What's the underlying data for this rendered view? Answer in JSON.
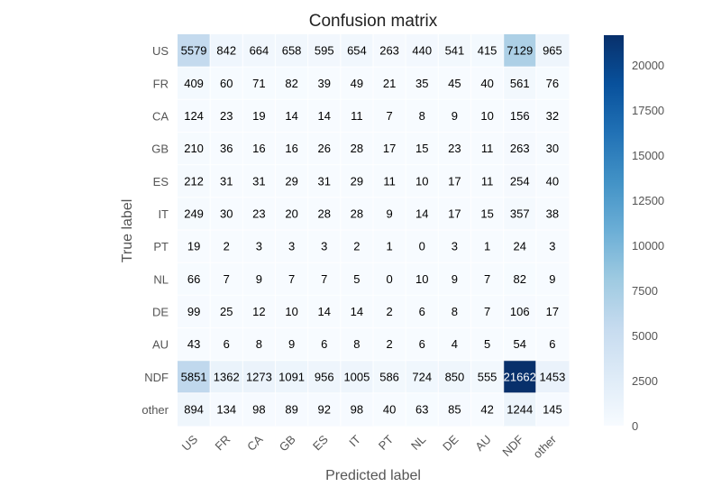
{
  "chart_data": {
    "type": "heatmap",
    "title": "Confusion matrix",
    "xlabel": "Predicted label",
    "ylabel": "True label",
    "x_categories": [
      "US",
      "FR",
      "CA",
      "GB",
      "ES",
      "IT",
      "PT",
      "NL",
      "DE",
      "AU",
      "NDF",
      "other"
    ],
    "y_categories": [
      "US",
      "FR",
      "CA",
      "GB",
      "ES",
      "IT",
      "PT",
      "NL",
      "DE",
      "AU",
      "NDF",
      "other"
    ],
    "values": [
      [
        5579,
        842,
        664,
        658,
        595,
        654,
        263,
        440,
        541,
        415,
        7129,
        965
      ],
      [
        409,
        60,
        71,
        82,
        39,
        49,
        21,
        35,
        45,
        40,
        561,
        76
      ],
      [
        124,
        23,
        19,
        14,
        14,
        11,
        7,
        8,
        9,
        10,
        156,
        32
      ],
      [
        210,
        36,
        16,
        16,
        26,
        28,
        17,
        15,
        23,
        11,
        263,
        30
      ],
      [
        212,
        31,
        31,
        29,
        31,
        29,
        11,
        10,
        17,
        11,
        254,
        40
      ],
      [
        249,
        30,
        23,
        20,
        28,
        28,
        9,
        14,
        17,
        15,
        357,
        38
      ],
      [
        19,
        2,
        3,
        3,
        3,
        2,
        1,
        0,
        3,
        1,
        24,
        3
      ],
      [
        66,
        7,
        9,
        7,
        7,
        5,
        0,
        10,
        9,
        7,
        82,
        9
      ],
      [
        99,
        25,
        12,
        10,
        14,
        14,
        2,
        6,
        8,
        7,
        106,
        17
      ],
      [
        43,
        6,
        8,
        9,
        6,
        8,
        2,
        6,
        4,
        5,
        54,
        6
      ],
      [
        5851,
        1362,
        1273,
        1091,
        956,
        1005,
        586,
        724,
        850,
        555,
        21662,
        1453
      ],
      [
        894,
        134,
        98,
        89,
        92,
        98,
        40,
        63,
        85,
        42,
        1244,
        145
      ]
    ],
    "colormap": "Blues",
    "vmin": 0,
    "vmax": 21662,
    "colorbar_ticks": [
      0,
      2500,
      5000,
      7500,
      10000,
      12500,
      15000,
      17500,
      20000
    ],
    "colorbar_tick_labels": [
      "0",
      "2500",
      "5000",
      "7500",
      "10000",
      "12500",
      "15000",
      "17500",
      "20000"
    ],
    "grid": true,
    "text_dark_color": "#000000",
    "text_light_color": "#ffffff"
  }
}
